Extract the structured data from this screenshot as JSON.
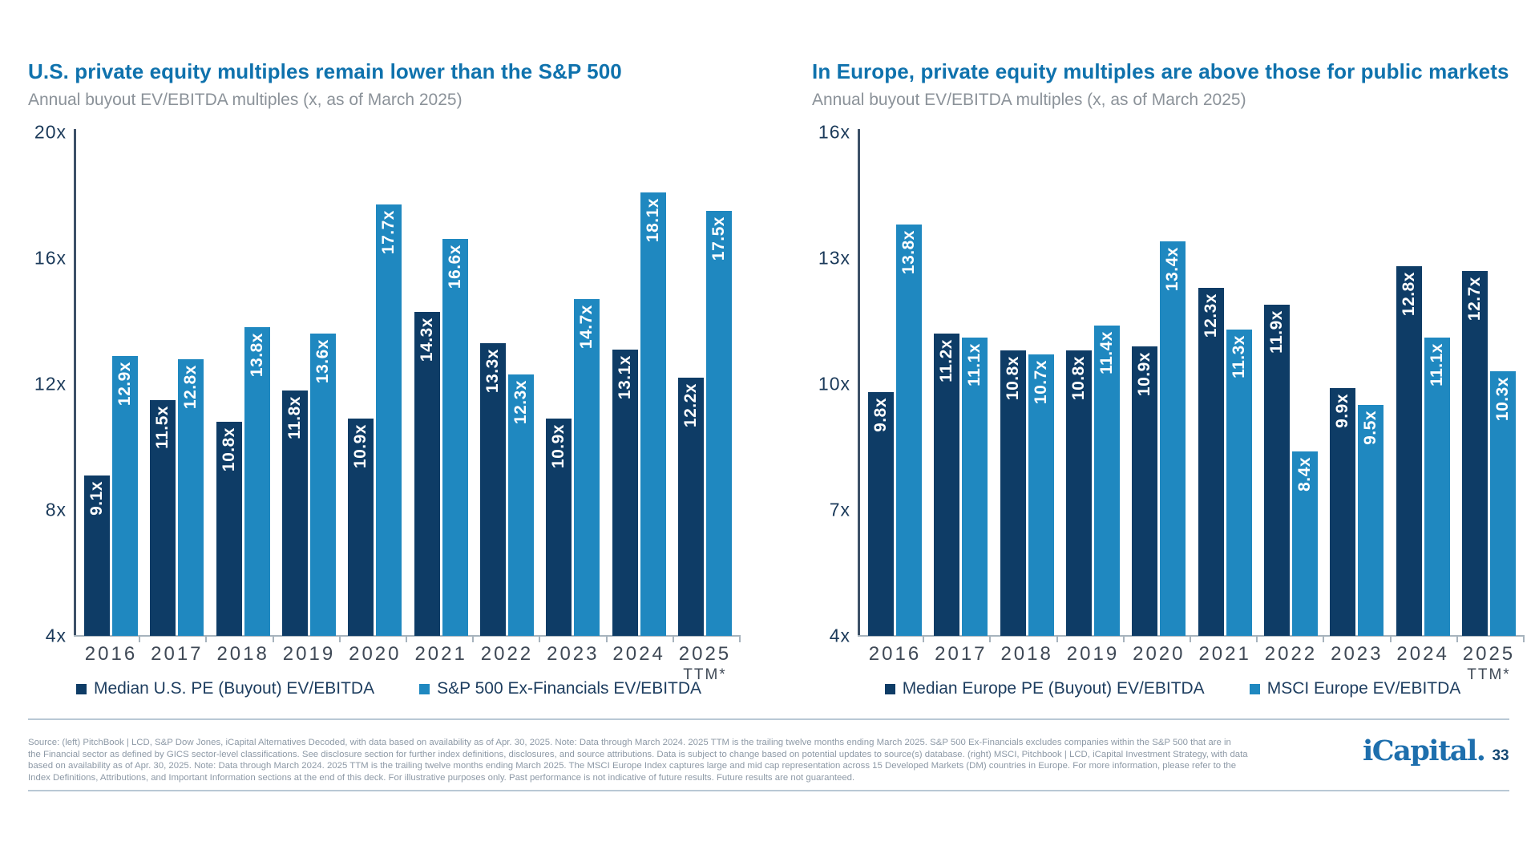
{
  "slide": {
    "brand": {
      "logo_text": "iCapital.",
      "page_number": "33"
    },
    "footer_lines": [
      "Source: (left) PitchBook | LCD, S&P Dow Jones, iCapital Alternatives Decoded, with data based on availability as of Apr. 30, 2025. Note: Data through March 2024. 2025 TTM is the trailing twelve months ending March 2025. S&P 500 Ex-Financials excludes companies within the S&P 500 that are in",
      "the Financial sector as defined by GICS sector-level classifications. See disclosure section for further index definitions, disclosures, and source attributions. Data is subject to change based on potential updates to source(s) database. (right) MSCI, Pitchbook | LCD, iCapital Investment Strategy, with data",
      "based on availability as of Apr. 30, 2025. Note: Data through March 2024. 2025 TTM is the trailing twelve months ending March 2025. The MSCI Europe Index captures large and mid cap representation across 15 Developed Markets (DM) countries in Europe. For more information, please refer to the",
      "Index Definitions, Attributions, and Important Information sections at the end of this deck. For illustrative purposes only. Past performance is not indicative of future results. Future results are not guaranteed."
    ]
  },
  "colors": {
    "bar_dark_navy": "#0e3c66",
    "bar_light_blue": "#1f88c0",
    "title_blue": "#0f72ad",
    "logo_blue": "#1e6fad"
  },
  "chart_data": [
    {
      "type": "bar",
      "title": "U.S. private equity multiples remain lower than the S&P 500",
      "subtitle": "Annual buyout EV/EBITDA multiples (x, as of March 2025)",
      "categories": [
        {
          "label": "2016"
        },
        {
          "label": "2017"
        },
        {
          "label": "2018"
        },
        {
          "label": "2019"
        },
        {
          "label": "2020"
        },
        {
          "label": "2021"
        },
        {
          "label": "2022"
        },
        {
          "label": "2023"
        },
        {
          "label": "2024"
        },
        {
          "label": "2025",
          "sublabel": "TTM*"
        }
      ],
      "series": [
        {
          "name": "Median U.S. PE (Buyout) EV/EBITDA",
          "color": "#0e3c66",
          "values": [
            9.1,
            11.5,
            10.8,
            11.8,
            10.9,
            14.3,
            13.3,
            10.9,
            13.1,
            12.2
          ]
        },
        {
          "name": "S&P 500 Ex-Financials EV/EBITDA",
          "color": "#1f88c0",
          "values": [
            12.9,
            12.8,
            13.8,
            13.6,
            17.7,
            16.6,
            12.3,
            14.7,
            18.1,
            17.5
          ]
        }
      ],
      "ylim": [
        4,
        20
      ],
      "yticks": [
        20,
        16,
        12,
        8,
        4
      ],
      "value_suffix": "x",
      "grid": false,
      "legend_position": "bottom",
      "value_labels": "inside-top-rotated"
    },
    {
      "type": "bar",
      "title": "In Europe, private equity multiples are above those for public markets",
      "subtitle": "Annual buyout EV/EBITDA multiples (x, as of March 2025)",
      "categories": [
        {
          "label": "2016"
        },
        {
          "label": "2017"
        },
        {
          "label": "2018"
        },
        {
          "label": "2019"
        },
        {
          "label": "2020"
        },
        {
          "label": "2021"
        },
        {
          "label": "2022"
        },
        {
          "label": "2023"
        },
        {
          "label": "2024"
        },
        {
          "label": "2025",
          "sublabel": "TTM*"
        }
      ],
      "series": [
        {
          "name": "Median Europe PE (Buyout) EV/EBITDA",
          "color": "#0e3c66",
          "values": [
            9.8,
            11.2,
            10.8,
            10.8,
            10.9,
            12.3,
            11.9,
            9.9,
            12.8,
            12.7
          ]
        },
        {
          "name": "MSCI Europe EV/EBITDA",
          "color": "#1f88c0",
          "values": [
            13.8,
            11.1,
            10.7,
            11.4,
            13.4,
            11.3,
            8.4,
            9.5,
            11.1,
            10.3
          ]
        }
      ],
      "ylim": [
        4,
        16
      ],
      "yticks": [
        16,
        13,
        10,
        7,
        4
      ],
      "value_suffix": "x",
      "grid": false,
      "legend_position": "bottom",
      "value_labels": "inside-top-rotated"
    }
  ]
}
